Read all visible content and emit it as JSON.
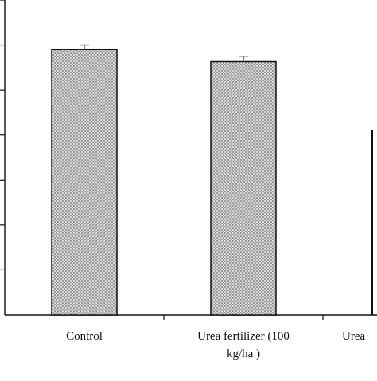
{
  "chart_data": {
    "type": "bar",
    "categories": [
      [
        "Control"
      ],
      [
        "Urea fertilizer (100",
        "kg/ha )"
      ],
      [
        "Urea"
      ]
    ],
    "series": [
      {
        "values": [
          5.9,
          5.63,
          4.1
        ],
        "errors": [
          0.1,
          0.12,
          null
        ]
      }
    ],
    "ylim": [
      0,
      7
    ],
    "y_tick_step": 1,
    "title": "",
    "xlabel": "",
    "ylabel": "",
    "grid": false,
    "bar_fill": "dotted-grey",
    "colors": {
      "bar_fill": "#9a9a9a",
      "bar_dots": "#f2f2f2",
      "outline": "#111111",
      "error_bar": "#555555"
    }
  }
}
